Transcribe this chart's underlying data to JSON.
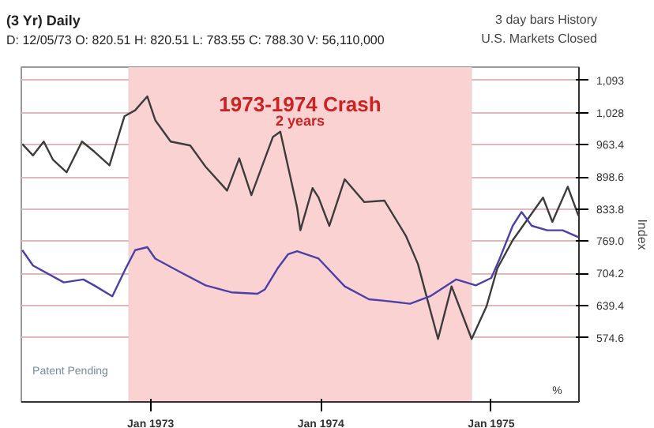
{
  "chart_data": {
    "type": "line",
    "title": "(3 Yr) Daily",
    "ylabel": "Index",
    "annotations": [
      "D: 12/05/73  O: 820.51  H: 820.51  L: 783.55  C: 788.30  V: 56,110,000",
      "3 day bars  History",
      "U.S. Markets Closed",
      "2 years",
      "Patent Pending",
      "%"
    ],
    "series": [
      {
        "color": "#3c3c3c",
        "x": [
          "1972-04-01",
          "1972-04-24",
          "1972-05-17",
          "1972-06-06",
          "1972-07-05",
          "1972-08-07",
          "1972-09-02",
          "1972-10-05",
          "1972-11-06",
          "1972-11-29",
          "1972-12-25",
          "1973-01-11",
          "1973-02-13",
          "1973-03-27",
          "1973-04-29",
          "1973-06-14",
          "1973-07-10",
          "1973-08-05",
          "1973-09-20",
          "1973-10-06",
          "1973-11-11",
          "1973-11-18",
          "1973-12-14",
          "1973-12-27",
          "1974-01-19",
          "1974-02-21",
          "1974-04-04",
          "1974-05-17",
          "1974-07-02",
          "1974-07-28",
          "1974-08-13",
          "1974-09-09",
          "1974-10-08",
          "1974-11-20",
          "1974-12-22",
          "1975-01-14",
          "1975-02-16",
          "1975-04-22",
          "1975-05-12",
          "1975-06-14",
          "1975-07-07"
        ],
        "values": [
          965,
          942,
          970,
          933,
          908,
          970,
          950,
          922,
          1021,
          1033,
          1061,
          1013,
          970,
          962,
          919,
          871,
          936,
          862,
          979,
          990,
          837,
          791,
          876,
          857,
          800,
          894,
          848,
          851,
          780,
          723,
          666,
          572,
          678,
          572,
          638,
          714,
          771,
          857,
          808,
          879,
          820
        ]
      },
      {
        "color": "#4b3fa8",
        "x": [
          "1972-04-01",
          "1972-04-24",
          "1972-06-29",
          "1972-08-10",
          "1972-09-02",
          "1972-10-11",
          "1972-11-06",
          "1972-11-29",
          "1972-12-25",
          "1973-01-11",
          "1973-03-07",
          "1973-04-29",
          "1973-06-23",
          "1973-08-18",
          "1973-09-03",
          "1973-09-30",
          "1973-10-23",
          "1973-11-11",
          "1973-12-27",
          "1974-02-21",
          "1974-04-14",
          "1974-05-17",
          "1974-07-11",
          "1974-08-23",
          "1974-10-18",
          "1974-11-29",
          "1975-01-01",
          "1975-01-17",
          "1975-02-16",
          "1975-03-07",
          "1975-03-29",
          "1975-05-01",
          "1975-06-03",
          "1975-07-07"
        ],
        "values": [
          751,
          720,
          686,
          692,
          680,
          658,
          709,
          751,
          757,
          734,
          706,
          680,
          666,
          663,
          672,
          714,
          743,
          749,
          734,
          678,
          652,
          649,
          643,
          658,
          692,
          680,
          695,
          729,
          800,
          828,
          800,
          791,
          791,
          777
        ]
      }
    ],
    "xlim": [
      "1972-03-30",
      "1975-07-08"
    ],
    "xticks": [
      {
        "value": "1973-01-01",
        "label": "Jan 1973"
      },
      {
        "value": "1974-01-01",
        "label": "Jan 1974"
      },
      {
        "value": "1975-01-01",
        "label": "Jan 1975"
      }
    ],
    "ylim": [
      445,
      1120
    ],
    "yticks": [
      574.6,
      639.4,
      704.2,
      {
        "value": 769,
        "label": "769.0"
      },
      833.8,
      898.6,
      963.4,
      {
        "value": 1028,
        "label": "1,028"
      },
      {
        "value": 1093,
        "label": "1,093"
      }
    ],
    "grid": "y",
    "bands": [
      {
        "axis": "x",
        "from": "1972-11-15",
        "to": "1974-11-20",
        "label": "1973-1974 Crash",
        "color": "#fad2d2"
      }
    ]
  }
}
